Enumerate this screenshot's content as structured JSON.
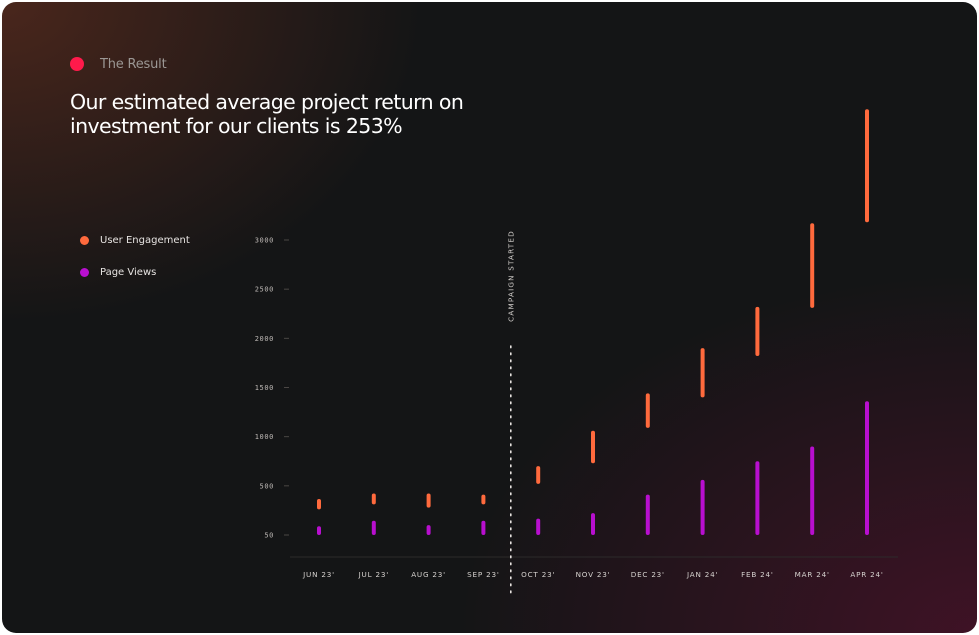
{
  "header": {
    "eyebrow": "The Result",
    "title": "Our estimated average project return on investment for our clients is 253%",
    "accent_color": "#ff1a4b"
  },
  "legend": {
    "items": [
      {
        "label": "User Engagement",
        "color": "#ff6a3d"
      },
      {
        "label": "Page Views",
        "color": "#b80fcf"
      }
    ]
  },
  "chart_data": {
    "type": "bar",
    "subtype": "floating-range",
    "categories": [
      "JUN 23'",
      "JUL 23'",
      "AUG 23'",
      "SEP 23'",
      "OCT 23'",
      "NOV 23'",
      "DEC 23'",
      "JAN 24'",
      "FEB 24'",
      "MAR 24'",
      "APR 24'"
    ],
    "y_ticks": [
      50,
      500,
      1000,
      1500,
      2000,
      2500,
      3000
    ],
    "y_tick_labels": [
      "50",
      "500",
      "1000",
      "1500",
      "2000",
      "2500",
      "3000"
    ],
    "ylim": [
      50,
      3000
    ],
    "grid": false,
    "legend_position": "left",
    "series": [
      {
        "name": "User Engagement",
        "color": "#ff6a3d",
        "ranges": [
          [
            285,
            380
          ],
          [
            330,
            430
          ],
          [
            300,
            430
          ],
          [
            330,
            420
          ],
          [
            520,
            700
          ],
          [
            730,
            1060
          ],
          [
            1090,
            1440
          ],
          [
            1400,
            1900
          ],
          [
            1820,
            2320
          ],
          [
            2310,
            3170
          ],
          [
            3180,
            4330
          ]
        ]
      },
      {
        "name": "Page Views",
        "color": "#b80fcf",
        "ranges": [
          [
            50,
            130
          ],
          [
            50,
            180
          ],
          [
            50,
            140
          ],
          [
            50,
            180
          ],
          [
            50,
            200
          ],
          [
            50,
            250
          ],
          [
            50,
            420
          ],
          [
            50,
            560
          ],
          [
            50,
            750
          ],
          [
            50,
            900
          ],
          [
            50,
            1360
          ]
        ]
      }
    ],
    "annotation": {
      "label": "CAMPAIGN STARTED",
      "after_category": "SEP 23'"
    }
  }
}
